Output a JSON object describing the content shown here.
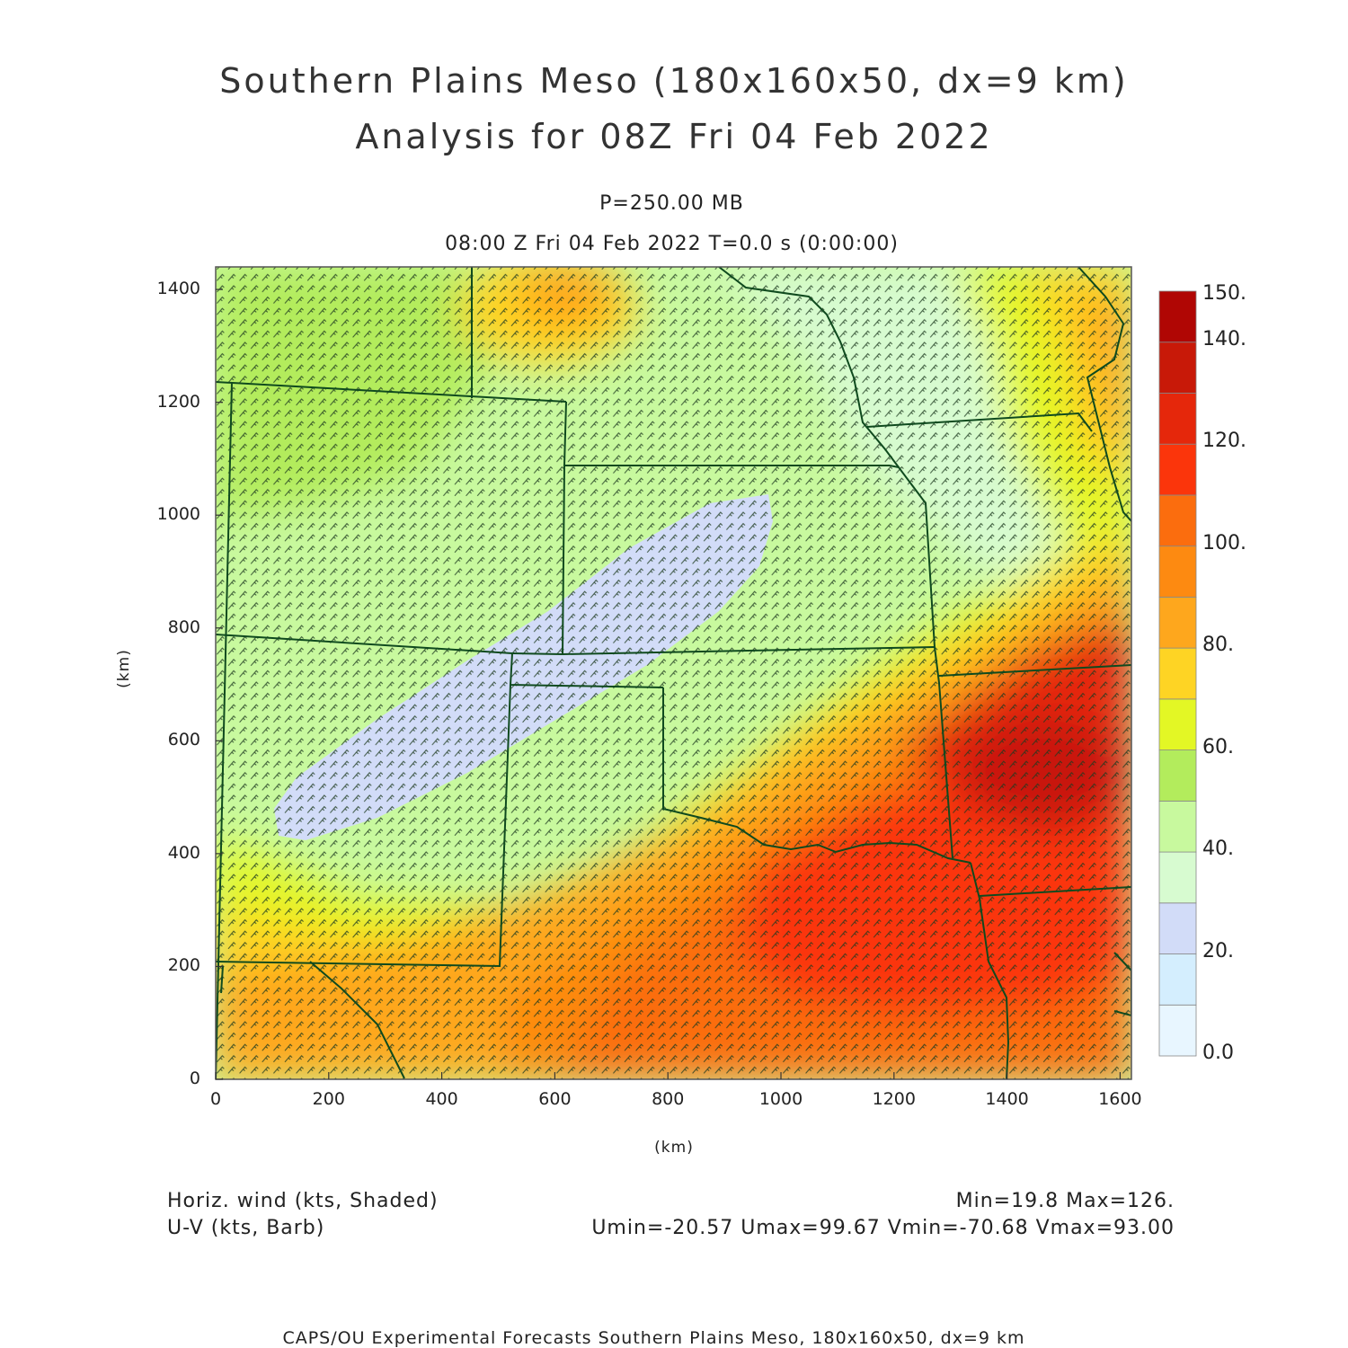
{
  "header": {
    "title_line1": "Southern Plains Meso (180x160x50, dx=9 km)",
    "title_line2": "Analysis for 08Z Fri 04 Feb 2022",
    "level": "P=250.00 MB",
    "valid_time": "08:00 Z Fri 04 Feb 2022    T=0.0 s (0:00:00)"
  },
  "axes": {
    "xlabel": "(km)",
    "ylabel": "(km)",
    "xticks": [
      "0",
      "200",
      "400",
      "600",
      "800",
      "1000",
      "1200",
      "1400",
      "1600"
    ],
    "yticks": [
      "0",
      "200",
      "400",
      "600",
      "800",
      "1000",
      "1200",
      "1400"
    ],
    "xlim": [
      0,
      1620
    ],
    "ylim": [
      0,
      1440
    ]
  },
  "colorbar": {
    "labels": [
      "0.0",
      "20.",
      "40.",
      "60.",
      "80.",
      "100.",
      "120.",
      "140.",
      "150."
    ],
    "levels": [
      0,
      10,
      20,
      30,
      40,
      50,
      60,
      70,
      80,
      90,
      100,
      110,
      120,
      130,
      140,
      150
    ],
    "colors": [
      "#e8f6ff",
      "#d4eefe",
      "#d2dcf8",
      "#d7fbd0",
      "#c8f99e",
      "#b3ec5c",
      "#e3f725",
      "#fed424",
      "#fea71d",
      "#fd8a11",
      "#fb6d0e",
      "#fb350b",
      "#e5270b",
      "#c81908",
      "#b00604"
    ]
  },
  "legend": {
    "shaded_var": "Horiz. wind (kts, Shaded)",
    "barb_var": "U-V (kts, Barb)",
    "minmax_shaded": "Min=19.8 Max=126.",
    "minmax_uv": "Umin=-20.57 Umax=99.67 Vmin=-70.68 Vmax=93.00"
  },
  "footer": "CAPS/OU Experimental Forecasts  Southern Plains Meso, 180x160x50, dx=9 km",
  "colors": {
    "boundaries": "#0f4a1e",
    "barbs": "#1d3a1f"
  }
}
